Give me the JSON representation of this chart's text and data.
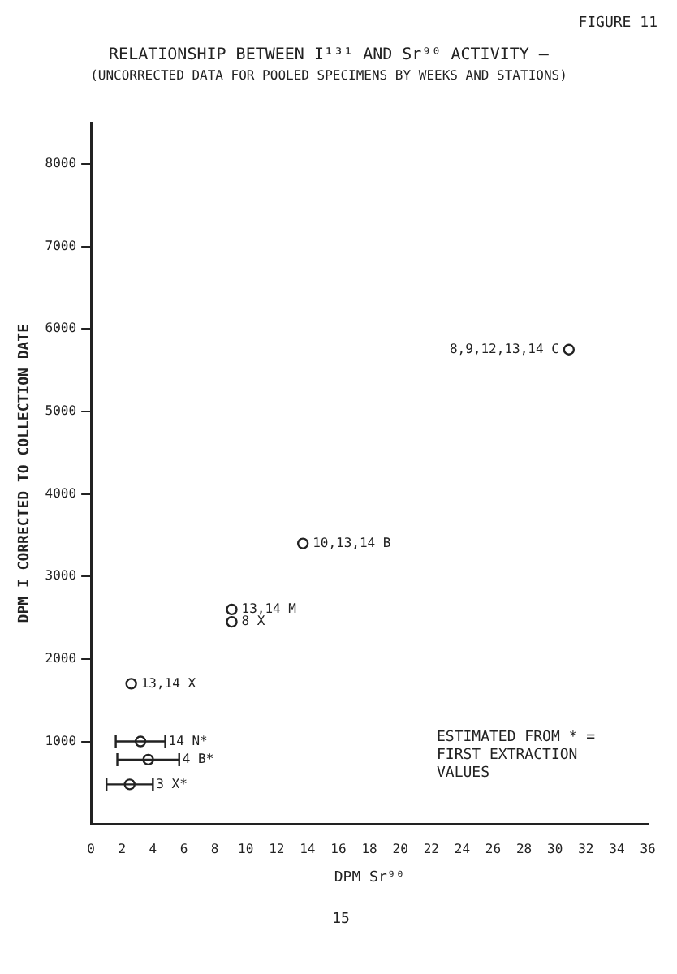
{
  "chart_data": {
    "type": "scatter",
    "title": "RELATIONSHIP BETWEEN I¹³¹ AND Sr⁹⁰ ACTIVITY —",
    "subtitle": "(UNCORRECTED DATA FOR POOLED SPECIMENS BY WEEKS AND STATIONS)",
    "xlabel": "DPM Sr⁹⁰",
    "ylabel": "DPM I CORRECTED TO COLLECTION DATE",
    "xlim": [
      0,
      36
    ],
    "xticks": [
      0,
      2,
      4,
      6,
      8,
      10,
      12,
      14,
      16,
      18,
      20,
      22,
      24,
      26,
      28,
      30,
      32,
      34,
      36
    ],
    "ylim": [
      0,
      8500
    ],
    "yticks": [
      1000,
      2000,
      3000,
      4000,
      5000,
      6000,
      7000,
      8000
    ],
    "grid": false,
    "legend": false,
    "marker": "circle",
    "series": [
      {
        "color": "#222222",
        "x": [
          2.6,
          9.1,
          9.1,
          13.7,
          30.9
        ],
        "values": [
          1700,
          2600,
          2450,
          3400,
          5750
        ]
      },
      {
        "color": "#222222",
        "x": [
          3.2,
          3.7,
          2.5
        ],
        "values": [
          1000,
          780,
          480
        ],
        "xerrors": [
          [
            1.6,
            4.8
          ],
          [
            1.7,
            5.7
          ],
          [
            1.0,
            4.0
          ]
        ]
      }
    ],
    "annotations": [
      "FIGURE 11",
      "ESTIMATED FROM * = FIRST EXTRACTION VALUES",
      "15",
      {
        "text": "13,14 X",
        "x": 2.6,
        "y": 1700
      },
      {
        "text": "13,14 M",
        "x": 9.1,
        "y": 2600
      },
      {
        "text": "8 X",
        "x": 9.1,
        "y": 2450
      },
      {
        "text": "10,13,14 B",
        "x": 13.7,
        "y": 3400
      },
      {
        "text": "8,9,12,13,14 C",
        "x": 30.9,
        "y": 5750
      },
      {
        "text": "14 N*",
        "x": 3.2,
        "y": 1000
      },
      {
        "text": "4 B*",
        "x": 3.7,
        "y": 780
      },
      {
        "text": "3 X*",
        "x": 2.5,
        "y": 480
      }
    ]
  }
}
